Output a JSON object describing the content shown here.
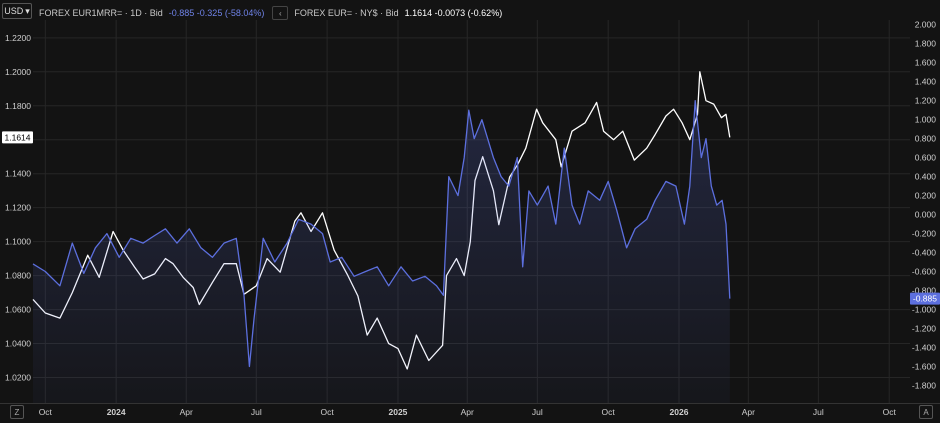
{
  "currency_selector": {
    "label": "USD"
  },
  "legend": {
    "series1_name": "FOREX EUR1MRR= · 1D · Bid",
    "series1_values": "-0.885 -0.325 (-58.04%)",
    "series2_name": "FOREX EUR= · NY$ · Bid",
    "series2_values": "1.1614 -0.0073 (-0.62%)"
  },
  "corner_left": "Z",
  "corner_right": "A",
  "colors": {
    "background": "#131313",
    "blue": "#5c6fde",
    "white": "#ffffff",
    "grid": "#262626",
    "price_tag": "#ffffff",
    "blue_tag": "#5c6fde"
  },
  "chart_data": {
    "type": "line",
    "x_axis_ticks": [
      "Oct",
      "2024",
      "Apr",
      "Jul",
      "Oct",
      "2025",
      "Apr",
      "Jul",
      "Oct",
      "2026",
      "Apr",
      "Jul",
      "Oct"
    ],
    "x_axis_tick_dates": [
      "2023-10-01",
      "2024-01-01",
      "2024-04-01",
      "2024-07-01",
      "2024-10-01",
      "2025-01-01",
      "2025-04-01",
      "2025-07-01",
      "2025-10-01",
      "2026-01-01",
      "2026-04-01",
      "2026-07-01",
      "2026-10-01"
    ],
    "x_range": [
      "2023-09-15",
      "2026-10-28"
    ],
    "left_axis": {
      "ticks": [
        "1.0200",
        "1.0400",
        "1.0600",
        "1.0800",
        "1.1000",
        "1.1200",
        "1.1400",
        "1.1600",
        "1.1800",
        "1.2000",
        "1.2200"
      ],
      "range": [
        1.005,
        1.2305
      ]
    },
    "right_axis": {
      "ticks": [
        "-1.800",
        "-1.600",
        "-1.400",
        "-1.200",
        "-1.000",
        "-0.800",
        "-0.600",
        "-0.400",
        "-0.200",
        "0.000",
        "0.200",
        "0.400",
        "0.600",
        "0.800",
        "1.000",
        "1.200",
        "1.400",
        "1.600",
        "1.800",
        "2.000"
      ],
      "range": [
        -1.985,
        2.05
      ]
    },
    "last_value_left": "1.1614",
    "last_value_right": "-0.885",
    "grid": true,
    "series": [
      {
        "axis": "left",
        "color": "#ffffff",
        "points": [
          [
            "2023-09-15",
            1.066
          ],
          [
            "2023-10-01",
            1.058
          ],
          [
            "2023-10-20",
            1.055
          ],
          [
            "2023-11-05",
            1.07
          ],
          [
            "2023-11-25",
            1.092
          ],
          [
            "2023-12-10",
            1.079
          ],
          [
            "2023-12-28",
            1.106
          ],
          [
            "2024-01-10",
            1.095
          ],
          [
            "2024-01-25",
            1.085
          ],
          [
            "2024-02-05",
            1.078
          ],
          [
            "2024-02-20",
            1.081
          ],
          [
            "2024-03-05",
            1.09
          ],
          [
            "2024-03-15",
            1.087
          ],
          [
            "2024-03-28",
            1.079
          ],
          [
            "2024-04-10",
            1.073
          ],
          [
            "2024-04-18",
            1.063
          ],
          [
            "2024-05-05",
            1.076
          ],
          [
            "2024-05-20",
            1.087
          ],
          [
            "2024-06-05",
            1.087
          ],
          [
            "2024-06-15",
            1.069
          ],
          [
            "2024-07-01",
            1.074
          ],
          [
            "2024-07-15",
            1.09
          ],
          [
            "2024-08-01",
            1.082
          ],
          [
            "2024-08-20",
            1.112
          ],
          [
            "2024-08-28",
            1.117
          ],
          [
            "2024-09-10",
            1.106
          ],
          [
            "2024-09-25",
            1.117
          ],
          [
            "2024-10-10",
            1.095
          ],
          [
            "2024-10-28",
            1.08
          ],
          [
            "2024-11-10",
            1.068
          ],
          [
            "2024-11-22",
            1.045
          ],
          [
            "2024-12-05",
            1.055
          ],
          [
            "2024-12-20",
            1.04
          ],
          [
            "2025-01-01",
            1.037
          ],
          [
            "2025-01-13",
            1.025
          ],
          [
            "2025-01-25",
            1.045
          ],
          [
            "2025-02-10",
            1.03
          ],
          [
            "2025-02-28",
            1.039
          ],
          [
            "2025-03-05",
            1.08
          ],
          [
            "2025-03-18",
            1.09
          ],
          [
            "2025-03-28",
            1.08
          ],
          [
            "2025-04-05",
            1.1
          ],
          [
            "2025-04-11",
            1.136
          ],
          [
            "2025-04-21",
            1.15
          ],
          [
            "2025-05-05",
            1.13
          ],
          [
            "2025-05-12",
            1.11
          ],
          [
            "2025-05-26",
            1.138
          ],
          [
            "2025-06-05",
            1.145
          ],
          [
            "2025-06-16",
            1.155
          ],
          [
            "2025-06-30",
            1.178
          ],
          [
            "2025-07-08",
            1.17
          ],
          [
            "2025-07-25",
            1.16
          ],
          [
            "2025-08-01",
            1.144
          ],
          [
            "2025-08-15",
            1.165
          ],
          [
            "2025-09-01",
            1.17
          ],
          [
            "2025-09-16",
            1.182
          ],
          [
            "2025-09-25",
            1.165
          ],
          [
            "2025-10-08",
            1.16
          ],
          [
            "2025-10-20",
            1.165
          ],
          [
            "2025-11-04",
            1.148
          ],
          [
            "2025-11-20",
            1.155
          ],
          [
            "2025-12-01",
            1.163
          ],
          [
            "2025-12-15",
            1.174
          ],
          [
            "2025-12-25",
            1.178
          ],
          [
            "2026-01-05",
            1.17
          ],
          [
            "2026-01-15",
            1.16
          ],
          [
            "2026-01-25",
            1.175
          ],
          [
            "2026-01-28",
            1.2
          ],
          [
            "2026-02-05",
            1.183
          ],
          [
            "2026-02-15",
            1.181
          ],
          [
            "2026-02-25",
            1.173
          ],
          [
            "2026-03-03",
            1.175
          ],
          [
            "2026-03-08",
            1.1614
          ]
        ]
      },
      {
        "axis": "right",
        "color": "#5c6fde",
        "points": [
          [
            "2023-09-15",
            -0.52
          ],
          [
            "2023-10-01",
            -0.6
          ],
          [
            "2023-10-20",
            -0.75
          ],
          [
            "2023-11-05",
            -0.3
          ],
          [
            "2023-11-20",
            -0.62
          ],
          [
            "2023-12-05",
            -0.35
          ],
          [
            "2023-12-20",
            -0.2
          ],
          [
            "2024-01-05",
            -0.45
          ],
          [
            "2024-01-20",
            -0.25
          ],
          [
            "2024-02-05",
            -0.3
          ],
          [
            "2024-02-20",
            -0.22
          ],
          [
            "2024-03-05",
            -0.15
          ],
          [
            "2024-03-20",
            -0.3
          ],
          [
            "2024-04-05",
            -0.15
          ],
          [
            "2024-04-20",
            -0.35
          ],
          [
            "2024-05-05",
            -0.45
          ],
          [
            "2024-05-20",
            -0.3
          ],
          [
            "2024-06-05",
            -0.25
          ],
          [
            "2024-06-15",
            -0.85
          ],
          [
            "2024-06-22",
            -1.6
          ],
          [
            "2024-06-28",
            -1.1
          ],
          [
            "2024-07-10",
            -0.25
          ],
          [
            "2024-07-25",
            -0.5
          ],
          [
            "2024-08-10",
            -0.3
          ],
          [
            "2024-08-25",
            -0.05
          ],
          [
            "2024-09-10",
            -0.1
          ],
          [
            "2024-09-25",
            -0.2
          ],
          [
            "2024-10-05",
            -0.5
          ],
          [
            "2024-10-20",
            -0.45
          ],
          [
            "2024-11-05",
            -0.65
          ],
          [
            "2024-11-20",
            -0.6
          ],
          [
            "2024-12-05",
            -0.55
          ],
          [
            "2024-12-20",
            -0.75
          ],
          [
            "2025-01-05",
            -0.55
          ],
          [
            "2025-01-20",
            -0.7
          ],
          [
            "2025-02-05",
            -0.65
          ],
          [
            "2025-02-20",
            -0.75
          ],
          [
            "2025-03-01",
            -0.85
          ],
          [
            "2025-03-08",
            0.4
          ],
          [
            "2025-03-20",
            0.2
          ],
          [
            "2025-03-28",
            0.6
          ],
          [
            "2025-04-03",
            1.1
          ],
          [
            "2025-04-10",
            0.8
          ],
          [
            "2025-04-20",
            1.0
          ],
          [
            "2025-05-05",
            0.6
          ],
          [
            "2025-05-15",
            0.4
          ],
          [
            "2025-05-25",
            0.3
          ],
          [
            "2025-06-05",
            0.6
          ],
          [
            "2025-06-12",
            -0.55
          ],
          [
            "2025-06-20",
            0.25
          ],
          [
            "2025-07-01",
            0.1
          ],
          [
            "2025-07-15",
            0.3
          ],
          [
            "2025-07-25",
            -0.1
          ],
          [
            "2025-08-05",
            0.7
          ],
          [
            "2025-08-15",
            0.1
          ],
          [
            "2025-08-25",
            -0.1
          ],
          [
            "2025-09-05",
            0.25
          ],
          [
            "2025-09-20",
            0.15
          ],
          [
            "2025-10-01",
            0.35
          ],
          [
            "2025-10-12",
            0.05
          ],
          [
            "2025-10-25",
            -0.35
          ],
          [
            "2025-11-05",
            -0.15
          ],
          [
            "2025-11-20",
            -0.05
          ],
          [
            "2025-12-01",
            0.15
          ],
          [
            "2025-12-15",
            0.35
          ],
          [
            "2025-12-28",
            0.3
          ],
          [
            "2026-01-08",
            -0.1
          ],
          [
            "2026-01-15",
            0.3
          ],
          [
            "2026-01-22",
            1.2
          ],
          [
            "2026-01-30",
            0.6
          ],
          [
            "2026-02-05",
            0.8
          ],
          [
            "2026-02-12",
            0.3
          ],
          [
            "2026-02-19",
            0.1
          ],
          [
            "2026-02-26",
            0.15
          ],
          [
            "2026-03-03",
            -0.1
          ],
          [
            "2026-03-08",
            -0.885
          ]
        ]
      }
    ]
  }
}
